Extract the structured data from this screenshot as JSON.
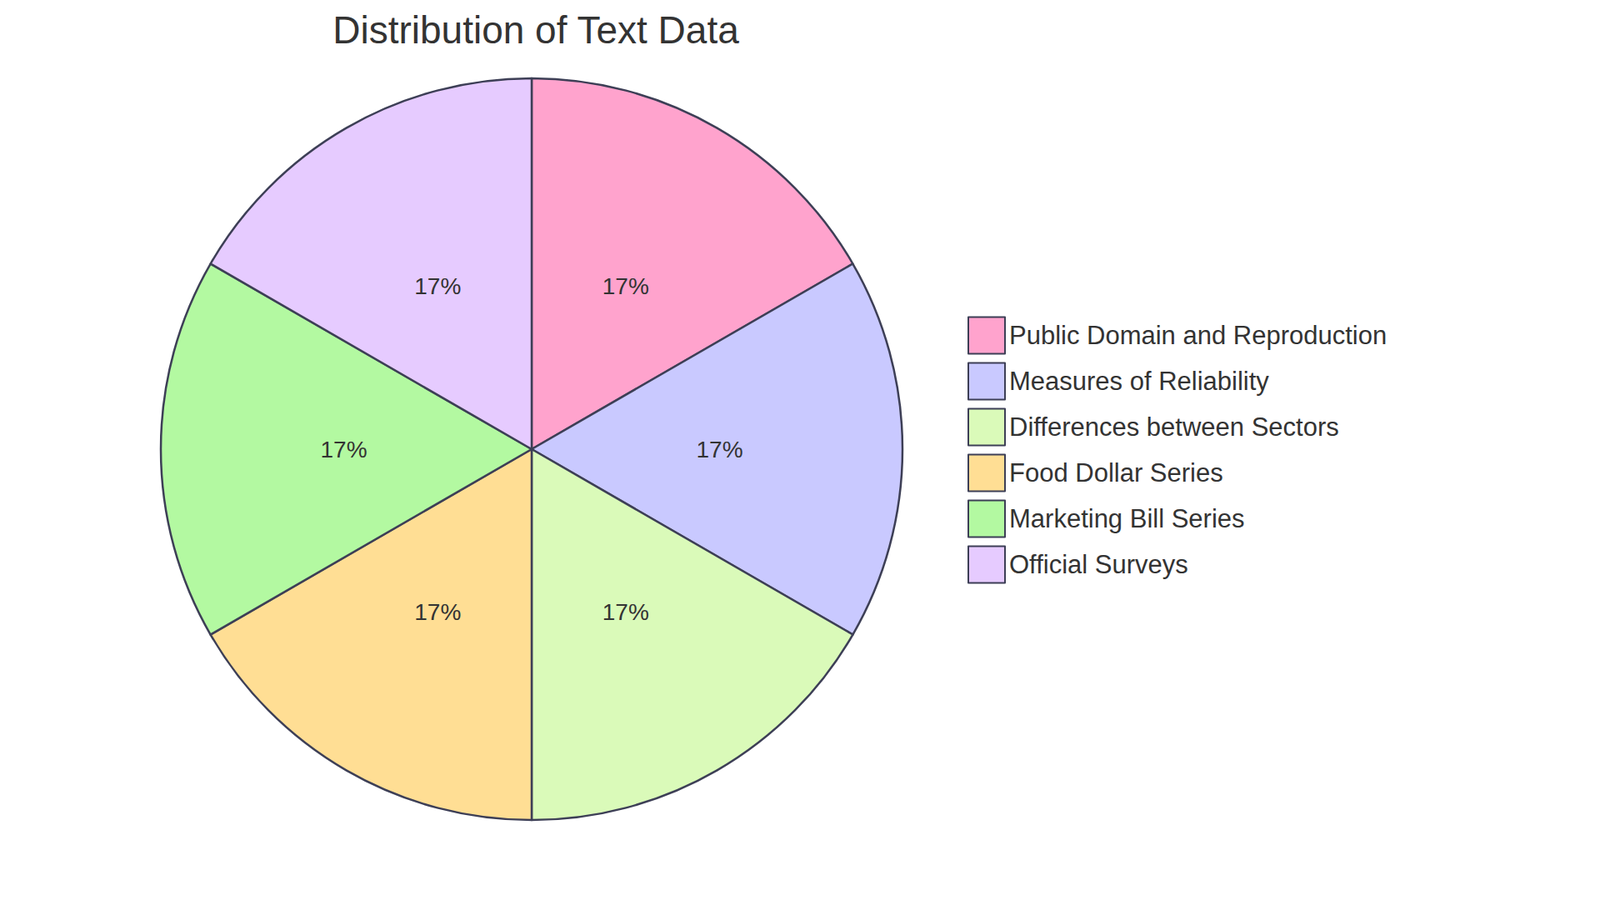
{
  "chart_data": {
    "type": "pie",
    "title": "Distribution of Text Data",
    "categories": [
      "Public Domain and Reproduction",
      "Measures of Reliability",
      "Differences between Sectors",
      "Food Dollar Series",
      "Marketing Bill Series",
      "Official Surveys"
    ],
    "values": [
      17,
      17,
      17,
      17,
      17,
      17
    ],
    "value_labels": [
      "17%",
      "17%",
      "17%",
      "17%",
      "17%",
      "17%"
    ],
    "colors": [
      "#ffa3cd",
      "#c9c9ff",
      "#dafab9",
      "#ffde94",
      "#b3f9a1",
      "#e6cbff"
    ],
    "data_labels": true,
    "legend": "right"
  }
}
